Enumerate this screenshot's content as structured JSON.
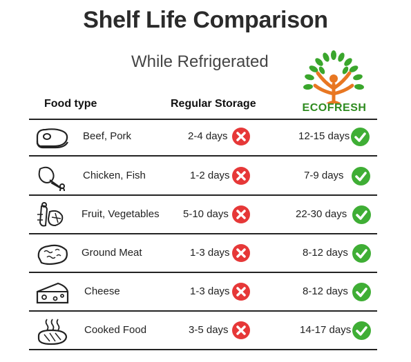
{
  "title": "Shelf Life Comparison",
  "subtitle": "While Refrigerated",
  "logo": {
    "text": "ECOFRESH",
    "brand_color": "#2e8b1f",
    "icon": "tree-person-icon"
  },
  "headers": {
    "food": "Food type",
    "regular": "Regular Storage"
  },
  "colors": {
    "cross": "#e63838",
    "check": "#3fae35"
  },
  "rows": [
    {
      "food": "Beef, Pork",
      "icon": "steak-icon",
      "regular": "2-4 days",
      "ecofresh": "12-15 days"
    },
    {
      "food": "Chicken, Fish",
      "icon": "chicken-leg-icon",
      "regular": "1-2 days",
      "ecofresh": "7-9 days"
    },
    {
      "food": "Fruit, Vegetables",
      "icon": "vegetables-icon",
      "regular": "5-10 days",
      "ecofresh": "22-30 days"
    },
    {
      "food": "Ground Meat",
      "icon": "ground-meat-icon",
      "regular": "1-3 days",
      "ecofresh": "8-12 days"
    },
    {
      "food": "Cheese",
      "icon": "cheese-icon",
      "regular": "1-3 days",
      "ecofresh": "8-12 days"
    },
    {
      "food": "Cooked Food",
      "icon": "cooked-food-icon",
      "regular": "3-5 days",
      "ecofresh": "14-17 days"
    }
  ]
}
